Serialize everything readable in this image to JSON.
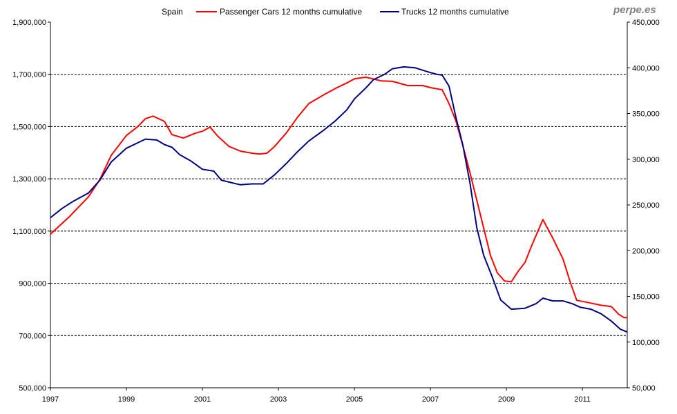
{
  "brand": "perpe.es",
  "chart_data": {
    "type": "line",
    "title": "Spain",
    "legend_position": "top",
    "x_ticks": [
      "1997",
      "1999",
      "2001",
      "2003",
      "2005",
      "2007",
      "2009",
      "2011"
    ],
    "xlim": [
      1997,
      2012.18
    ],
    "left_axis": {
      "ylim": [
        500000,
        1900000
      ],
      "ticks": [
        "500,000",
        "700,000",
        "900,000",
        "1,100,000",
        "1,300,000",
        "1,500,000",
        "1,700,000",
        "1,900,000"
      ]
    },
    "right_axis": {
      "ylim": [
        50000,
        450000
      ],
      "ticks": [
        "50,000",
        "100,000",
        "150,000",
        "200,000",
        "250,000",
        "300,000",
        "350,000",
        "400,000",
        "450,000"
      ]
    },
    "grid": "horizontal dashed",
    "series": [
      {
        "name": "Passenger Cars 12 months cumulative",
        "axis": "left",
        "color": "#ff0000",
        "x": [
          1997.0,
          1997.5,
          1998.0,
          1998.3,
          1998.6,
          1999.0,
          1999.3,
          1999.5,
          1999.7,
          2000.0,
          2000.2,
          2000.5,
          2000.8,
          2001.0,
          2001.2,
          2001.4,
          2001.7,
          2002.0,
          2002.3,
          2002.5,
          2002.7,
          2002.9,
          2003.2,
          2003.5,
          2003.8,
          2004.2,
          2004.5,
          2004.8,
          2005.0,
          2005.3,
          2005.7,
          2006.0,
          2006.4,
          2006.8,
          2007.0,
          2007.31,
          2007.49,
          2007.67,
          2007.85,
          2008.04,
          2008.22,
          2008.4,
          2008.58,
          2008.76,
          2008.95,
          2009.13,
          2009.31,
          2009.49,
          2009.67,
          2009.96,
          2010.22,
          2010.49,
          2010.69,
          2010.85,
          2011.13,
          2011.49,
          2011.76,
          2011.95,
          2012.09,
          2012.18
        ],
        "y": [
          1088000,
          1155000,
          1231000,
          1297000,
          1390000,
          1466000,
          1500000,
          1530000,
          1540000,
          1520000,
          1469000,
          1456000,
          1474000,
          1482000,
          1498000,
          1464000,
          1424000,
          1406000,
          1398000,
          1395000,
          1398000,
          1424000,
          1474000,
          1535000,
          1588000,
          1622000,
          1646000,
          1667000,
          1683000,
          1689000,
          1675000,
          1673000,
          1657000,
          1657000,
          1649000,
          1641000,
          1588000,
          1522000,
          1429000,
          1324000,
          1218000,
          1112000,
          1006000,
          940000,
          909000,
          906000,
          946000,
          980000,
          1046000,
          1144000,
          1073000,
          993000,
          900000,
          835000,
          827000,
          816000,
          811000,
          782000,
          769000,
          769000
        ]
      },
      {
        "name": "Trucks 12 months cumulative",
        "axis": "right",
        "color": "#000080",
        "x": [
          1997.0,
          1997.3,
          1997.6,
          1998.0,
          1998.3,
          1998.6,
          1999.0,
          1999.3,
          1999.5,
          1999.8,
          2000.0,
          2000.2,
          2000.4,
          2000.7,
          2001.0,
          2001.3,
          2001.5,
          2001.7,
          2002.0,
          2002.3,
          2002.6,
          2002.9,
          2003.2,
          2003.5,
          2003.8,
          2004.2,
          2004.5,
          2004.8,
          2005.0,
          2005.3,
          2005.5,
          2005.8,
          2006.0,
          2006.3,
          2006.6,
          2006.9,
          2007.15,
          2007.31,
          2007.49,
          2007.67,
          2007.85,
          2008.04,
          2008.22,
          2008.4,
          2008.62,
          2008.85,
          2009.13,
          2009.49,
          2009.78,
          2009.96,
          2010.22,
          2010.49,
          2010.73,
          2010.95,
          2011.22,
          2011.49,
          2011.76,
          2012.0,
          2012.18
        ],
        "y": [
          236000,
          246000,
          254000,
          263000,
          277000,
          297000,
          312000,
          318000,
          322000,
          321000,
          316000,
          313000,
          305000,
          298000,
          289000,
          287000,
          277000,
          275000,
          272000,
          273000,
          273000,
          283000,
          295000,
          308000,
          320000,
          332000,
          342000,
          354000,
          366000,
          378000,
          387000,
          393000,
          399000,
          401000,
          400000,
          396000,
          393000,
          392000,
          380000,
          346000,
          316000,
          274000,
          225000,
          195000,
          172000,
          146000,
          136000,
          137000,
          142000,
          148000,
          145000,
          145000,
          142000,
          138000,
          136000,
          131000,
          123000,
          114000,
          111000
        ]
      }
    ]
  }
}
